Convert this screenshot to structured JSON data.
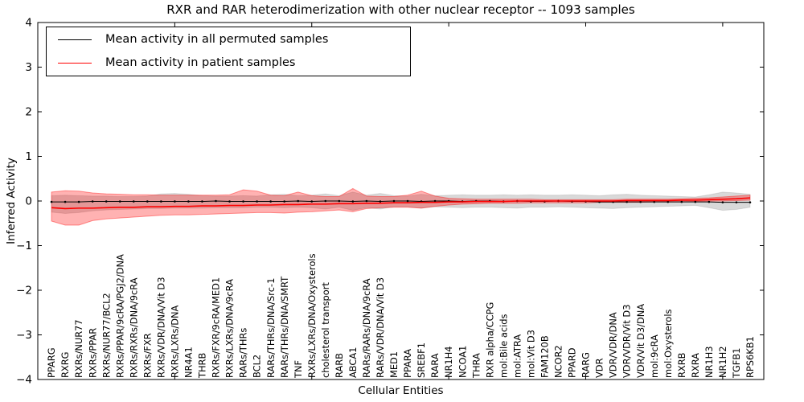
{
  "figure": {
    "xlabel": "Cellular Entities",
    "ylabel": "Inferred Activity"
  },
  "chart_data": {
    "type": "line",
    "title": "RXR and RAR heterodimerization with other nuclear receptor -- 1093 samples",
    "xlabel": "Cellular Entities",
    "ylabel": "Inferred Activity",
    "ylim": [
      -4,
      4
    ],
    "xlim": [
      0,
      53
    ],
    "yticks": [
      4,
      3,
      2,
      1,
      0,
      -1,
      -2,
      -3,
      -4
    ],
    "ytick_labels": [
      "4",
      "3",
      "2",
      "1",
      "0",
      "−1",
      "−2",
      "−3",
      "−4"
    ],
    "xtick_positions": [
      10,
      20,
      30,
      40,
      50
    ],
    "grid": false,
    "legend_position": "upper-left",
    "categories": [
      "PPARG",
      "RXRG",
      "RXRs/NUR77",
      "RXRs/PPAR",
      "RXRs/NUR77/BCL2",
      "RXRs/PPAR/9cRA/PGJ2/DNA",
      "RXRs/RXRs/DNA/9cRA",
      "RXRs/FXR",
      "RXRs/VDR/DNA/Vit D3",
      "RXRs/LXRs/DNA",
      "NR4A1",
      "THRB",
      "RXRs/FXR/9cRA/MED1",
      "RXRs/LXRs/DNA/9cRA",
      "RARs/THRs",
      "BCL2",
      "RARs/THRs/DNA/Src-1",
      "RARs/THRs/DNA/SMRT",
      "TNF",
      "RXRs/LXRs/DNA/Oxysterols",
      "cholesterol transport",
      "RARB",
      "ABCA1",
      "RARs/RARs/DNA/9cRA",
      "RARs/VDR/DNA/Vit D3",
      "MED1",
      "PPARA",
      "SREBF1",
      "RARA",
      "NR1H4",
      "NCOA1",
      "THRA",
      "RXR alpha/CCPG",
      "mol:Bile acids",
      "mol:ATRA",
      "mol:Vit D3",
      "FAM120B",
      "NCOR2",
      "PPARD",
      "RARG",
      "VDR",
      "VDR/VDR/DNA",
      "VDR/VDR/Vit D3",
      "VDR/Vit D3/DNA",
      "mol:9cRA",
      "mol:Oxysterols",
      "RXRB",
      "RXRA",
      "NR1H3",
      "NR1H2",
      "TGFB1",
      "RPS6KB1"
    ],
    "series": [
      {
        "name": "Mean activity in all permuted samples",
        "color": "#000000",
        "line_width": 1,
        "values": [
          -0.02,
          -0.02,
          -0.02,
          -0.01,
          -0.01,
          -0.01,
          -0.01,
          -0.01,
          -0.01,
          -0.01,
          -0.01,
          -0.01,
          0.0,
          -0.01,
          -0.01,
          -0.01,
          -0.01,
          -0.01,
          0.0,
          -0.01,
          0.0,
          0.0,
          -0.01,
          0.0,
          -0.01,
          0.0,
          0.0,
          -0.01,
          0.0,
          0.0,
          -0.01,
          0.0,
          0.0,
          -0.01,
          0.0,
          -0.01,
          -0.01,
          0.0,
          -0.01,
          -0.01,
          -0.02,
          -0.02,
          -0.02,
          -0.02,
          -0.02,
          -0.02,
          -0.02,
          -0.02,
          -0.02,
          -0.03,
          -0.03,
          -0.03
        ],
        "band": {
          "fill": "rgba(0,0,0,0.15)",
          "edge": "rgba(0,0,0,0.10)",
          "upper": [
            0.12,
            0.13,
            0.12,
            0.11,
            0.11,
            0.1,
            0.1,
            0.11,
            0.16,
            0.17,
            0.15,
            0.12,
            0.11,
            0.11,
            0.12,
            0.11,
            0.14,
            0.15,
            0.12,
            0.13,
            0.16,
            0.12,
            0.2,
            0.13,
            0.17,
            0.12,
            0.11,
            0.15,
            0.12,
            0.13,
            0.14,
            0.13,
            0.13,
            0.14,
            0.13,
            0.14,
            0.13,
            0.13,
            0.14,
            0.13,
            0.12,
            0.14,
            0.15,
            0.13,
            0.12,
            0.11,
            0.1,
            0.09,
            0.14,
            0.2,
            0.18,
            0.15
          ],
          "lower": [
            -0.25,
            -0.28,
            -0.26,
            -0.22,
            -0.2,
            -0.19,
            -0.18,
            -0.17,
            -0.17,
            -0.16,
            -0.16,
            -0.16,
            -0.15,
            -0.15,
            -0.15,
            -0.14,
            -0.14,
            -0.15,
            -0.14,
            -0.15,
            -0.18,
            -0.14,
            -0.21,
            -0.15,
            -0.18,
            -0.13,
            -0.13,
            -0.16,
            -0.13,
            -0.14,
            -0.15,
            -0.14,
            -0.14,
            -0.15,
            -0.16,
            -0.14,
            -0.14,
            -0.13,
            -0.14,
            -0.15,
            -0.16,
            -0.17,
            -0.15,
            -0.14,
            -0.13,
            -0.12,
            -0.11,
            -0.1,
            -0.15,
            -0.21,
            -0.19,
            -0.14
          ]
        }
      },
      {
        "name": "Mean activity in patient samples",
        "color": "#ff0000",
        "line_width": 1.6,
        "values": [
          -0.15,
          -0.17,
          -0.16,
          -0.16,
          -0.15,
          -0.14,
          -0.14,
          -0.13,
          -0.13,
          -0.12,
          -0.12,
          -0.11,
          -0.11,
          -0.1,
          -0.1,
          -0.09,
          -0.09,
          -0.08,
          -0.08,
          -0.07,
          -0.07,
          -0.06,
          -0.06,
          -0.05,
          -0.05,
          -0.04,
          -0.04,
          -0.03,
          -0.03,
          -0.02,
          -0.02,
          -0.01,
          -0.01,
          -0.01,
          0.0,
          0.0,
          0.0,
          0.0,
          0.0,
          0.0,
          0.0,
          0.0,
          0.01,
          0.01,
          0.01,
          0.01,
          0.02,
          0.02,
          0.03,
          0.04,
          0.05,
          0.07
        ],
        "band": {
          "fill": "rgba(255,0,0,0.30)",
          "edge": "rgba(255,0,0,0.40)",
          "upper": [
            0.2,
            0.23,
            0.22,
            0.18,
            0.16,
            0.15,
            0.14,
            0.14,
            0.13,
            0.13,
            0.13,
            0.13,
            0.13,
            0.14,
            0.25,
            0.22,
            0.13,
            0.12,
            0.2,
            0.12,
            0.1,
            0.1,
            0.28,
            0.11,
            0.1,
            0.1,
            0.13,
            0.22,
            0.11,
            0.06,
            0.05,
            0.04,
            0.04,
            0.04,
            0.04,
            0.04,
            0.03,
            0.03,
            0.03,
            0.03,
            0.03,
            0.03,
            0.04,
            0.04,
            0.04,
            0.04,
            0.05,
            0.06,
            0.07,
            0.09,
            0.11,
            0.13
          ],
          "lower": [
            -0.45,
            -0.54,
            -0.54,
            -0.44,
            -0.4,
            -0.38,
            -0.36,
            -0.34,
            -0.32,
            -0.31,
            -0.31,
            -0.3,
            -0.29,
            -0.28,
            -0.27,
            -0.26,
            -0.26,
            -0.27,
            -0.25,
            -0.24,
            -0.22,
            -0.2,
            -0.24,
            -0.17,
            -0.15,
            -0.14,
            -0.14,
            -0.16,
            -0.12,
            -0.09,
            -0.07,
            -0.06,
            -0.05,
            -0.05,
            -0.05,
            -0.04,
            -0.04,
            -0.04,
            -0.04,
            -0.04,
            -0.03,
            -0.03,
            -0.03,
            -0.03,
            -0.02,
            -0.02,
            -0.02,
            -0.01,
            0.0,
            0.0,
            0.01,
            0.02
          ]
        }
      }
    ]
  }
}
